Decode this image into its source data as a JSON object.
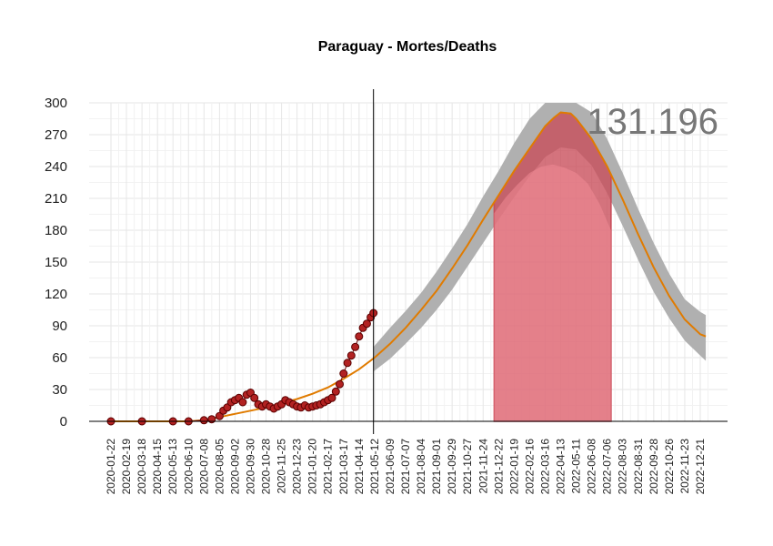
{
  "chart_data": {
    "type": "line",
    "title": "Paraguay - Mortes/Deaths",
    "annotation_total": "131.196",
    "ylim": [
      0,
      300
    ],
    "y_ticks": [
      "0",
      "30",
      "60",
      "90",
      "120",
      "150",
      "180",
      "210",
      "240",
      "270",
      "300"
    ],
    "x_start": "2020-01-22",
    "x_end": "2022-12-31",
    "x_ticks": [
      "2020-01-22",
      "2020-02-19",
      "2020-03-18",
      "2020-04-15",
      "2020-05-13",
      "2020-06-10",
      "2020-07-08",
      "2020-08-05",
      "2020-09-02",
      "2020-09-30",
      "2020-10-28",
      "2020-11-25",
      "2020-12-23",
      "2021-01-20",
      "2021-02-17",
      "2021-03-17",
      "2021-04-14",
      "2021-05-12",
      "2021-06-09",
      "2021-07-07",
      "2021-08-04",
      "2021-09-01",
      "2021-09-29",
      "2021-10-27",
      "2021-11-24",
      "2021-12-22",
      "2022-01-19",
      "2022-02-16",
      "2022-03-16",
      "2022-04-13",
      "2022-05-11",
      "2022-06-08",
      "2022-07-06",
      "2022-08-03",
      "2022-08-31",
      "2022-09-28",
      "2022-10-26",
      "2022-11-23",
      "2022-12-21"
    ],
    "grid": true,
    "today_line": "2021-05-10",
    "series": [
      {
        "role": "observed",
        "color": "#8b1a1a",
        "points": [
          [
            "2020-01-22",
            0
          ],
          [
            "2020-03-18",
            0
          ],
          [
            "2020-05-13",
            0
          ],
          [
            "2020-06-10",
            0
          ],
          [
            "2020-07-08",
            1
          ],
          [
            "2020-07-22",
            2
          ],
          [
            "2020-08-05",
            5
          ],
          [
            "2020-08-12",
            10
          ],
          [
            "2020-08-19",
            13
          ],
          [
            "2020-08-26",
            18
          ],
          [
            "2020-09-02",
            20
          ],
          [
            "2020-09-09",
            22
          ],
          [
            "2020-09-16",
            18
          ],
          [
            "2020-09-23",
            25
          ],
          [
            "2020-09-30",
            27
          ],
          [
            "2020-10-07",
            22
          ],
          [
            "2020-10-14",
            16
          ],
          [
            "2020-10-21",
            14
          ],
          [
            "2020-10-28",
            16
          ],
          [
            "2020-11-04",
            14
          ],
          [
            "2020-11-11",
            12
          ],
          [
            "2020-11-18",
            14
          ],
          [
            "2020-11-25",
            16
          ],
          [
            "2020-12-02",
            20
          ],
          [
            "2020-12-09",
            18
          ],
          [
            "2020-12-16",
            16
          ],
          [
            "2020-12-23",
            14
          ],
          [
            "2020-12-30",
            13
          ],
          [
            "2021-01-06",
            15
          ],
          [
            "2021-01-13",
            13
          ],
          [
            "2021-01-20",
            14
          ],
          [
            "2021-01-27",
            15
          ],
          [
            "2021-02-03",
            16
          ],
          [
            "2021-02-10",
            18
          ],
          [
            "2021-02-17",
            20
          ],
          [
            "2021-02-24",
            22
          ],
          [
            "2021-03-03",
            28
          ],
          [
            "2021-03-10",
            35
          ],
          [
            "2021-03-17",
            45
          ],
          [
            "2021-03-24",
            55
          ],
          [
            "2021-03-31",
            62
          ],
          [
            "2021-04-07",
            70
          ],
          [
            "2021-04-14",
            80
          ],
          [
            "2021-04-21",
            88
          ],
          [
            "2021-04-28",
            92
          ],
          [
            "2021-05-05",
            98
          ],
          [
            "2021-05-10",
            102
          ]
        ]
      },
      {
        "role": "fitted",
        "color": "#e07b00",
        "points": [
          [
            "2020-01-22",
            0
          ],
          [
            "2020-04-15",
            0
          ],
          [
            "2020-06-10",
            0
          ],
          [
            "2020-07-08",
            1
          ],
          [
            "2020-08-05",
            4
          ],
          [
            "2020-09-02",
            7
          ],
          [
            "2020-09-30",
            10
          ],
          [
            "2020-10-28",
            13
          ],
          [
            "2020-11-25",
            17
          ],
          [
            "2020-12-23",
            21
          ],
          [
            "2021-01-20",
            26
          ],
          [
            "2021-02-17",
            32
          ],
          [
            "2021-03-17",
            40
          ],
          [
            "2021-04-14",
            49
          ],
          [
            "2021-05-12",
            60
          ],
          [
            "2021-06-09",
            73
          ],
          [
            "2021-07-07",
            88
          ],
          [
            "2021-08-04",
            105
          ],
          [
            "2021-09-01",
            123
          ],
          [
            "2021-09-29",
            144
          ],
          [
            "2021-10-27",
            166
          ],
          [
            "2021-11-24",
            190
          ],
          [
            "2021-12-22",
            213
          ],
          [
            "2022-01-19",
            236
          ],
          [
            "2022-02-16",
            257
          ],
          [
            "2022-03-16",
            278
          ],
          [
            "2022-04-01",
            286
          ],
          [
            "2022-04-13",
            291
          ],
          [
            "2022-05-01",
            290
          ],
          [
            "2022-05-11",
            285
          ],
          [
            "2022-06-08",
            266
          ],
          [
            "2022-07-06",
            240
          ],
          [
            "2022-08-03",
            209
          ],
          [
            "2022-08-31",
            176
          ],
          [
            "2022-09-28",
            145
          ],
          [
            "2022-10-26",
            118
          ],
          [
            "2022-11-23",
            96
          ],
          [
            "2022-12-21",
            82
          ],
          [
            "2022-12-31",
            80
          ]
        ]
      }
    ],
    "prediction_band": {
      "color": "#b0b0b0",
      "upper": [
        [
          "2021-05-10",
          70
        ],
        [
          "2021-06-09",
          88
        ],
        [
          "2021-07-07",
          104
        ],
        [
          "2021-08-04",
          121
        ],
        [
          "2021-09-01",
          141
        ],
        [
          "2021-09-29",
          163
        ],
        [
          "2021-10-27",
          186
        ],
        [
          "2021-11-24",
          212
        ],
        [
          "2021-12-22",
          236
        ],
        [
          "2022-01-19",
          262
        ],
        [
          "2022-02-16",
          285
        ],
        [
          "2022-03-16",
          300
        ],
        [
          "2022-04-13",
          300
        ],
        [
          "2022-05-11",
          300
        ],
        [
          "2022-06-08",
          291
        ],
        [
          "2022-07-06",
          266
        ],
        [
          "2022-08-03",
          234
        ],
        [
          "2022-08-31",
          200
        ],
        [
          "2022-09-28",
          168
        ],
        [
          "2022-10-26",
          139
        ],
        [
          "2022-11-23",
          115
        ],
        [
          "2022-12-21",
          103
        ],
        [
          "2022-12-31",
          100
        ]
      ],
      "lower": [
        [
          "2021-05-10",
          47
        ],
        [
          "2021-06-09",
          59
        ],
        [
          "2021-07-07",
          73
        ],
        [
          "2021-08-04",
          88
        ],
        [
          "2021-09-01",
          105
        ],
        [
          "2021-09-29",
          124
        ],
        [
          "2021-10-27",
          146
        ],
        [
          "2021-11-24",
          168
        ],
        [
          "2021-12-22",
          190
        ],
        [
          "2022-01-19",
          211
        ],
        [
          "2022-02-16",
          231
        ],
        [
          "2022-03-16",
          249
        ],
        [
          "2022-04-13",
          258
        ],
        [
          "2022-05-11",
          256
        ],
        [
          "2022-06-08",
          241
        ],
        [
          "2022-07-06",
          215
        ],
        [
          "2022-08-03",
          184
        ],
        [
          "2022-08-31",
          152
        ],
        [
          "2022-09-28",
          122
        ],
        [
          "2022-10-26",
          97
        ],
        [
          "2022-11-23",
          76
        ],
        [
          "2022-12-21",
          62
        ],
        [
          "2022-12-31",
          57
        ]
      ]
    },
    "peak_area": {
      "color": "#c84b58",
      "start": "2021-12-14",
      "end": "2022-07-13",
      "inner_top": [
        [
          "2021-12-14",
          196
        ],
        [
          "2022-01-04",
          211
        ],
        [
          "2022-01-25",
          223
        ],
        [
          "2022-02-16",
          234
        ],
        [
          "2022-03-09",
          240
        ],
        [
          "2022-03-30",
          242
        ],
        [
          "2022-04-20",
          239
        ],
        [
          "2022-05-11",
          234
        ],
        [
          "2022-06-01",
          224
        ],
        [
          "2022-06-22",
          205
        ],
        [
          "2022-07-13",
          180
        ]
      ]
    }
  }
}
